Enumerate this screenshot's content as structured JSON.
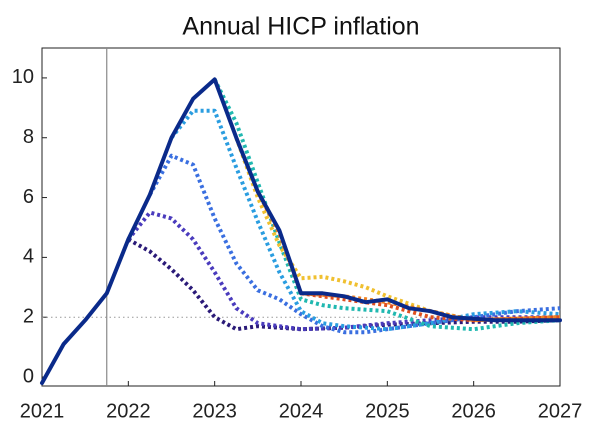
{
  "chart_data": {
    "type": "line",
    "title": "Annual HICP inflation",
    "xlim": [
      2021,
      2027
    ],
    "ylim": [
      -0.3,
      11
    ],
    "xticks": [
      2021,
      2022,
      2023,
      2024,
      2025,
      2026,
      2027
    ],
    "yticks": [
      0,
      2,
      4,
      6,
      8,
      10
    ],
    "vlines": [
      2021.75
    ],
    "hlines": [
      2
    ],
    "series": [
      {
        "color": "#2a1a78",
        "style": "dotted",
        "x": [
          2022,
          2022.25,
          2022.5,
          2022.75,
          2023,
          2023.25,
          2023.5,
          2024,
          2024.5,
          2025,
          2025.5,
          2026,
          2026.5,
          2027
        ],
        "values": [
          4.6,
          4.2,
          3.6,
          2.9,
          2.0,
          1.6,
          1.7,
          1.6,
          1.65,
          1.75,
          1.8,
          1.85,
          1.85,
          1.9
        ]
      },
      {
        "color": "#4a3bbd",
        "style": "dotted",
        "x": [
          2022,
          2022.25,
          2022.5,
          2022.75,
          2023,
          2023.25,
          2023.5,
          2023.75,
          2024,
          2024.5,
          2025,
          2025.5,
          2026,
          2026.5,
          2027
        ],
        "values": [
          4.6,
          5.5,
          5.3,
          4.6,
          3.5,
          2.3,
          1.8,
          1.7,
          1.6,
          1.65,
          1.8,
          1.9,
          2.0,
          2.0,
          2.0
        ]
      },
      {
        "color": "#3a6fe0",
        "style": "dotted",
        "x": [
          2022.25,
          2022.5,
          2022.75,
          2023,
          2023.25,
          2023.5,
          2023.75,
          2024,
          2024.25,
          2024.5,
          2024.75,
          2025,
          2025.5,
          2026,
          2026.5,
          2027
        ],
        "values": [
          6.1,
          7.4,
          7.1,
          5.3,
          3.8,
          2.9,
          2.6,
          2.1,
          1.7,
          1.5,
          1.5,
          1.6,
          1.8,
          2.0,
          2.2,
          2.3
        ]
      },
      {
        "color": "#2a9de0",
        "style": "dotted",
        "x": [
          2022.5,
          2022.75,
          2023,
          2023.25,
          2023.5,
          2023.75,
          2024,
          2024.25,
          2024.5,
          2025,
          2025.5,
          2026,
          2026.5,
          2027
        ],
        "values": [
          8.0,
          8.9,
          8.9,
          7.0,
          5.2,
          3.5,
          2.2,
          1.8,
          1.7,
          1.6,
          1.8,
          2.1,
          2.2,
          2.1
        ]
      },
      {
        "color": "#20b8b0",
        "style": "dotted",
        "x": [
          2023,
          2023.25,
          2023.5,
          2023.75,
          2024,
          2024.25,
          2024.5,
          2025,
          2025.5,
          2026,
          2026.5,
          2027
        ],
        "values": [
          9.95,
          8.5,
          6.5,
          4.5,
          2.6,
          2.4,
          2.3,
          2.2,
          1.7,
          1.6,
          1.8,
          1.9
        ]
      },
      {
        "color": "#f0c030",
        "style": "dotted",
        "x": [
          2023.25,
          2023.5,
          2023.75,
          2024,
          2024.25,
          2024.5,
          2024.75,
          2025,
          2025.5,
          2026,
          2026.5,
          2027
        ],
        "values": [
          8.0,
          6.0,
          4.4,
          3.3,
          3.35,
          3.2,
          3.0,
          2.7,
          2.2,
          1.9,
          1.95,
          2.0
        ]
      },
      {
        "color": "#f08020",
        "style": "dotted",
        "x": [
          2023.5,
          2023.75,
          2024,
          2024.5,
          2025,
          2025.5,
          2026,
          2026.5,
          2027
        ],
        "values": [
          6.2,
          4.8,
          2.8,
          2.7,
          2.5,
          2.2,
          1.9,
          1.95,
          2.0
        ]
      },
      {
        "color": "#e05020",
        "style": "dotted",
        "x": [
          2024,
          2024.5,
          2025,
          2025.5,
          2026,
          2026.5,
          2027
        ],
        "values": [
          2.8,
          2.6,
          2.4,
          2.0,
          1.9,
          1.95,
          2.0
        ]
      },
      {
        "color": "#0a2a8a",
        "style": "solid",
        "x": [
          2021,
          2021.25,
          2021.5,
          2021.75,
          2022,
          2022.25,
          2022.5,
          2022.75,
          2023,
          2023.25,
          2023.5,
          2023.75,
          2024,
          2024.25,
          2024.5,
          2024.75,
          2025,
          2025.25,
          2025.5,
          2025.75,
          2026,
          2026.25,
          2026.5,
          2026.75,
          2027
        ],
        "values": [
          -0.2,
          1.1,
          1.9,
          2.8,
          4.6,
          6.1,
          8.0,
          9.3,
          9.95,
          8.0,
          6.2,
          4.9,
          2.8,
          2.8,
          2.7,
          2.5,
          2.6,
          2.3,
          2.2,
          2.0,
          1.95,
          1.9,
          1.9,
          1.9,
          1.9
        ]
      }
    ]
  }
}
